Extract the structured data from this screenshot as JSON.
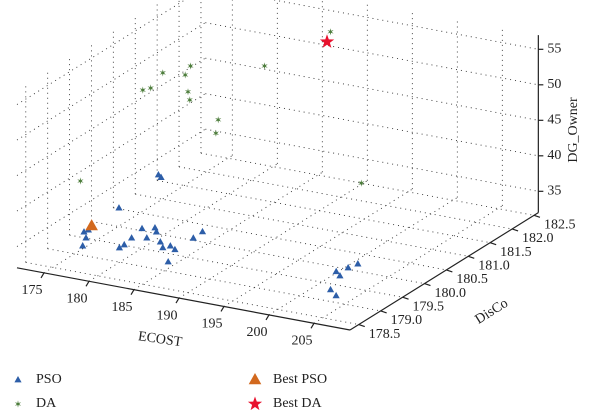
{
  "chart_data": {
    "type": "scatter3d",
    "xlabel": "ECOST",
    "ylabel": "DisCo",
    "zlabel": "DG_Owner",
    "xlim": [
      172,
      209
    ],
    "ylim": [
      178.3,
      182.6
    ],
    "zlim": [
      32,
      57
    ],
    "xticks": [
      175,
      180,
      185,
      190,
      195,
      200,
      205
    ],
    "yticks": [
      178.5,
      {
        "value": 179,
        "label": "179.0"
      },
      179.5,
      {
        "value": 180,
        "label": "180.0"
      },
      180.5,
      {
        "value": 181,
        "label": "181.0"
      },
      181.5,
      {
        "value": 182,
        "label": "182.0"
      },
      182.5
    ],
    "zticks": [
      35,
      40,
      45,
      50,
      55
    ],
    "grid": true,
    "series": [
      {
        "name": "PSO",
        "color": "#2d5ea8",
        "marker": "triangle",
        "x": [
          173.8,
          173.9,
          175.6,
          174.8,
          173.5,
          179.0,
          179.0,
          178.7,
          178.3,
          180.0,
          179.3,
          180.0,
          181.7,
          182.7,
          185.1,
          183.1,
          184.0,
          184.0,
          183.9,
          177.2,
          177.3,
          200.8,
          201.7,
          201.3,
          201.6,
          202.8,
          204.1
        ],
        "y": [
          179.46,
          179.54,
          179.06,
          179.3,
          180.32,
          179.2,
          179.31,
          179.54,
          179.86,
          179.62,
          179.95,
          179.84,
          179.58,
          179.43,
          179.06,
          179.52,
          179.44,
          179.86,
          180.09,
          180.46,
          180.5,
          179.67,
          179.57,
          179.84,
          180.0,
          179.13,
          178.99
        ],
        "z": [
          33,
          33,
          33,
          33,
          33,
          33,
          33,
          33,
          33,
          33,
          33,
          33,
          33,
          33,
          33,
          33,
          33,
          33,
          33,
          38,
          37.5,
          33,
          33,
          33,
          33,
          33,
          33
        ]
      },
      {
        "name": "DA",
        "color": "#4d7d3c",
        "marker": "star6",
        "x": [
          173.3,
          175.9,
          176.3,
          177.2,
          179.4,
          179.6,
          180.0,
          180.3,
          183.2,
          183.5,
          186.9,
          197.6,
          189.8
        ],
        "y": [
          179.48,
          180.37,
          180.47,
          180.56,
          180.62,
          180.7,
          180.56,
          180.54,
          180.54,
          180.53,
          180.89,
          180.9,
          181.8
        ],
        "z": [
          40,
          50,
          50,
          52,
          52,
          53,
          50,
          49,
          45,
          47,
          54,
          40,
          56
        ]
      },
      {
        "name": "Best PSO",
        "color": "#d2691e",
        "marker": "bigtriangle",
        "x": [
          174.6
        ],
        "y": [
          179.47
        ],
        "z": [
          34
        ]
      },
      {
        "name": "Best DA",
        "color": "#e8112d",
        "marker": "star5",
        "x": [
          189.9
        ],
        "y": [
          181.7
        ],
        "z": [
          55
        ]
      }
    ]
  }
}
